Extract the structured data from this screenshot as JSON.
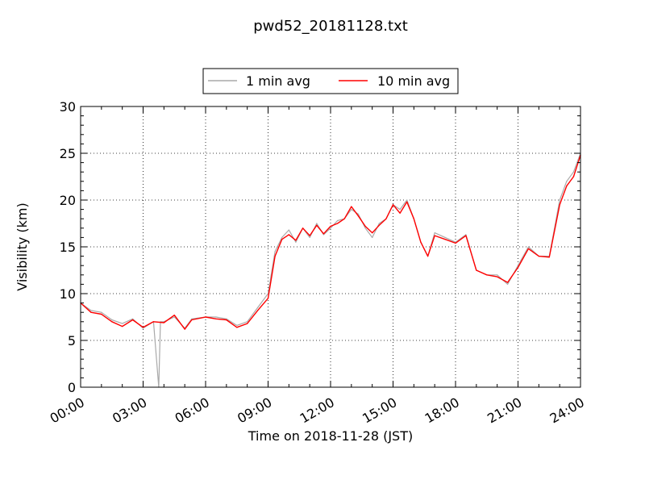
{
  "chart_data": {
    "type": "line",
    "title": "pwd52_20181128.txt",
    "xlabel": "Time on 2018-11-28 (JST)",
    "ylabel": "Visibility (km)",
    "xlim": [
      "00:00",
      "24:00"
    ],
    "ylim": [
      0,
      30
    ],
    "x_ticks": [
      "00:00",
      "03:00",
      "06:00",
      "09:00",
      "12:00",
      "15:00",
      "18:00",
      "21:00",
      "24:00"
    ],
    "y_ticks": [
      "0",
      "5",
      "10",
      "15",
      "20",
      "25",
      "30"
    ],
    "grid": true,
    "legend_position": "top-center",
    "series": [
      {
        "name": "1 min avg",
        "color": "#a9a9a9",
        "x": [
          "00:00",
          "00:30",
          "01:00",
          "01:30",
          "02:00",
          "02:30",
          "03:00",
          "03:30",
          "03:45",
          "03:50",
          "04:00",
          "04:30",
          "05:00",
          "05:20",
          "06:00",
          "06:30",
          "07:00",
          "07:30",
          "08:00",
          "08:30",
          "09:00",
          "09:20",
          "09:40",
          "10:00",
          "10:20",
          "10:40",
          "11:00",
          "11:20",
          "11:40",
          "12:00",
          "12:20",
          "12:40",
          "13:00",
          "13:20",
          "13:40",
          "14:00",
          "14:20",
          "14:40",
          "15:00",
          "15:20",
          "15:40",
          "16:00",
          "16:20",
          "16:40",
          "17:00",
          "17:30",
          "18:00",
          "18:30",
          "19:00",
          "19:30",
          "20:00",
          "20:30",
          "21:00",
          "21:30",
          "22:00",
          "22:30",
          "23:00",
          "23:20",
          "23:40",
          "24:00"
        ],
        "y": [
          9.0,
          8.2,
          8.0,
          7.2,
          6.8,
          7.3,
          6.3,
          7.0,
          0.0,
          7.0,
          7.0,
          7.5,
          6.3,
          7.3,
          7.5,
          7.5,
          7.3,
          6.6,
          7.0,
          8.5,
          10.0,
          14.5,
          16.0,
          16.8,
          15.5,
          17.0,
          16.0,
          17.5,
          16.3,
          17.0,
          17.8,
          18.0,
          19.0,
          18.5,
          17.0,
          16.0,
          17.5,
          18.0,
          19.5,
          19.0,
          20.0,
          18.0,
          15.5,
          14.0,
          16.5,
          16.0,
          15.5,
          16.3,
          12.5,
          12.0,
          12.0,
          11.0,
          13.0,
          15.0,
          14.0,
          14.0,
          20.0,
          22.0,
          23.0,
          25.0
        ]
      },
      {
        "name": "10 min avg",
        "color": "#ff0000",
        "x": [
          "00:00",
          "00:30",
          "01:00",
          "01:30",
          "02:00",
          "02:30",
          "03:00",
          "03:30",
          "04:00",
          "04:30",
          "05:00",
          "05:20",
          "06:00",
          "06:30",
          "07:00",
          "07:30",
          "08:00",
          "08:30",
          "09:00",
          "09:20",
          "09:40",
          "10:00",
          "10:20",
          "10:40",
          "11:00",
          "11:20",
          "11:40",
          "12:00",
          "12:20",
          "12:40",
          "13:00",
          "13:20",
          "13:40",
          "14:00",
          "14:20",
          "14:40",
          "15:00",
          "15:20",
          "15:40",
          "16:00",
          "16:20",
          "16:40",
          "17:00",
          "17:30",
          "18:00",
          "18:30",
          "19:00",
          "19:30",
          "20:00",
          "20:30",
          "21:00",
          "21:30",
          "22:00",
          "22:30",
          "23:00",
          "23:20",
          "23:40",
          "24:00"
        ],
        "y": [
          9.0,
          8.0,
          7.8,
          7.0,
          6.5,
          7.2,
          6.4,
          7.0,
          6.9,
          7.7,
          6.2,
          7.2,
          7.5,
          7.3,
          7.2,
          6.4,
          6.8,
          8.2,
          9.5,
          14.0,
          15.8,
          16.3,
          15.7,
          17.0,
          16.2,
          17.3,
          16.4,
          17.2,
          17.5,
          18.0,
          19.3,
          18.3,
          17.2,
          16.5,
          17.3,
          18.0,
          19.5,
          18.6,
          19.8,
          18.0,
          15.5,
          14.0,
          16.2,
          15.8,
          15.4,
          16.2,
          12.5,
          12.0,
          11.8,
          11.2,
          12.8,
          14.8,
          14.0,
          13.9,
          19.5,
          21.5,
          22.5,
          24.8
        ]
      }
    ]
  }
}
